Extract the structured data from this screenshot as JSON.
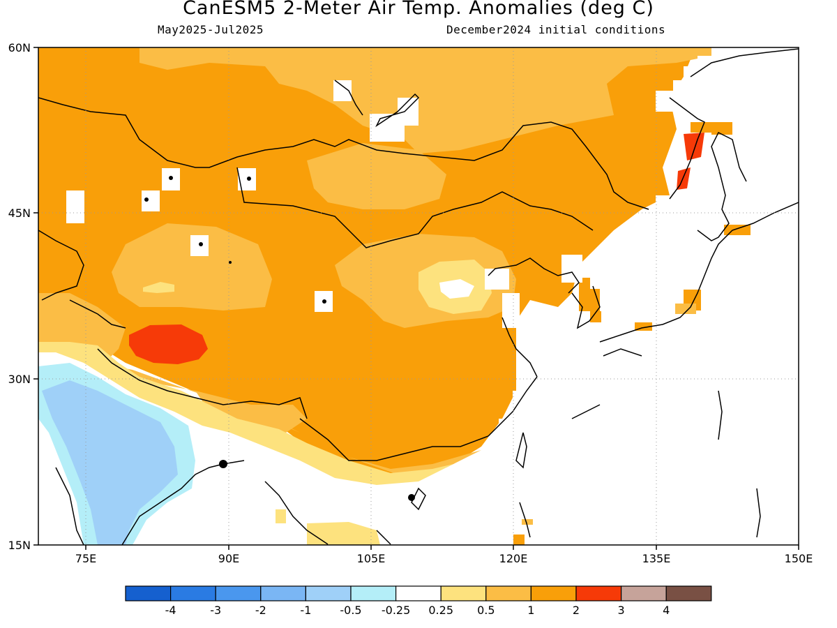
{
  "title": "CanESM5 2-Meter Air Temp. Anomalies (deg C)",
  "subtitle_left": "May2025-Jul2025",
  "subtitle_right": "December2024 initial conditions",
  "lat_labels": [
    "60N",
    "45N",
    "30N",
    "15N"
  ],
  "lon_labels": [
    "75E",
    "90E",
    "105E",
    "120E",
    "135E",
    "150E"
  ],
  "colorbar": {
    "tick_labels": [
      "-4",
      "-3",
      "-2",
      "-1",
      "-0.5",
      "-0.25",
      "0.25",
      "0.5",
      "1",
      "2",
      "3",
      "4"
    ],
    "colors": [
      "#1560cf",
      "#2a7be3",
      "#4a97ee",
      "#7ab6f4",
      "#9fd0f8",
      "#b4eef8",
      "#ffffff",
      "#fde27e",
      "#fbbd45",
      "#f99f09",
      "#f63a08",
      "#c6a39a",
      "#795044"
    ]
  }
}
